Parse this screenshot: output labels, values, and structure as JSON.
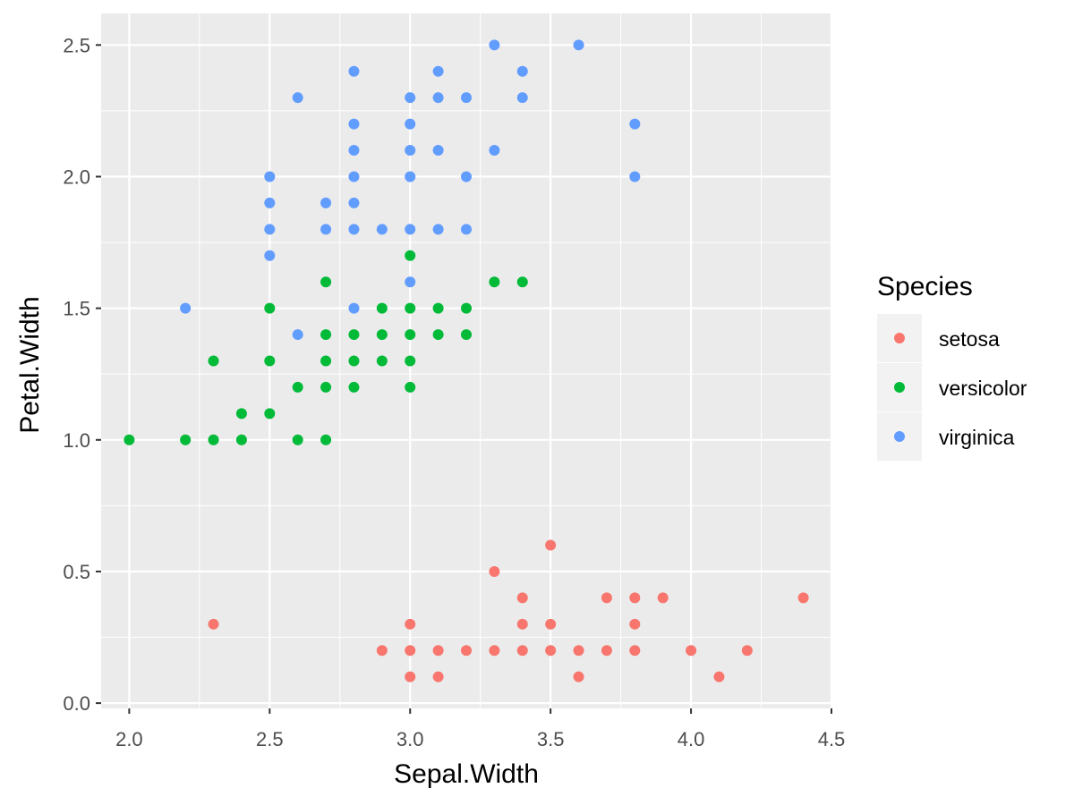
{
  "chart_data": {
    "type": "scatter",
    "xlabel": "Sepal.Width",
    "ylabel": "Petal.Width",
    "xlim": [
      1.9,
      4.5
    ],
    "ylim": [
      -0.02,
      2.62
    ],
    "x_ticks": [
      2.0,
      2.5,
      3.0,
      3.5,
      4.0,
      4.5
    ],
    "y_ticks": [
      0.0,
      0.5,
      1.0,
      1.5,
      2.0,
      2.5
    ],
    "grid": true,
    "legend": {
      "title": "Species",
      "placement": "right"
    },
    "series": [
      {
        "name": "setosa",
        "color": "#F8766D",
        "points": [
          [
            2.3,
            0.3
          ],
          [
            2.9,
            0.2
          ],
          [
            3.0,
            0.1
          ],
          [
            3.0,
            0.2
          ],
          [
            3.0,
            0.3
          ],
          [
            3.1,
            0.1
          ],
          [
            3.1,
            0.2
          ],
          [
            3.2,
            0.2
          ],
          [
            3.3,
            0.2
          ],
          [
            3.3,
            0.5
          ],
          [
            3.4,
            0.2
          ],
          [
            3.4,
            0.3
          ],
          [
            3.4,
            0.4
          ],
          [
            3.5,
            0.2
          ],
          [
            3.5,
            0.3
          ],
          [
            3.5,
            0.6
          ],
          [
            3.6,
            0.1
          ],
          [
            3.6,
            0.2
          ],
          [
            3.7,
            0.2
          ],
          [
            3.7,
            0.4
          ],
          [
            3.8,
            0.2
          ],
          [
            3.8,
            0.3
          ],
          [
            3.8,
            0.4
          ],
          [
            3.9,
            0.4
          ],
          [
            4.0,
            0.2
          ],
          [
            4.1,
            0.1
          ],
          [
            4.2,
            0.2
          ],
          [
            4.4,
            0.4
          ]
        ]
      },
      {
        "name": "versicolor",
        "color": "#00BA38",
        "points": [
          [
            2.0,
            1.0
          ],
          [
            2.2,
            1.0
          ],
          [
            2.3,
            1.0
          ],
          [
            2.3,
            1.3
          ],
          [
            2.4,
            1.0
          ],
          [
            2.4,
            1.1
          ],
          [
            2.5,
            1.1
          ],
          [
            2.5,
            1.3
          ],
          [
            2.5,
            1.5
          ],
          [
            2.6,
            1.0
          ],
          [
            2.6,
            1.2
          ],
          [
            2.7,
            1.0
          ],
          [
            2.7,
            1.2
          ],
          [
            2.7,
            1.3
          ],
          [
            2.7,
            1.4
          ],
          [
            2.7,
            1.6
          ],
          [
            2.8,
            1.2
          ],
          [
            2.8,
            1.3
          ],
          [
            2.8,
            1.4
          ],
          [
            2.9,
            1.3
          ],
          [
            2.9,
            1.4
          ],
          [
            2.9,
            1.5
          ],
          [
            3.0,
            1.2
          ],
          [
            3.0,
            1.3
          ],
          [
            3.0,
            1.4
          ],
          [
            3.0,
            1.5
          ],
          [
            3.0,
            1.7
          ],
          [
            3.1,
            1.4
          ],
          [
            3.1,
            1.5
          ],
          [
            3.2,
            1.4
          ],
          [
            3.2,
            1.5
          ],
          [
            3.3,
            1.6
          ],
          [
            3.4,
            1.6
          ]
        ]
      },
      {
        "name": "virginica",
        "color": "#619CFF",
        "points": [
          [
            2.2,
            1.5
          ],
          [
            2.5,
            1.7
          ],
          [
            2.5,
            1.8
          ],
          [
            2.5,
            1.9
          ],
          [
            2.5,
            2.0
          ],
          [
            2.6,
            1.4
          ],
          [
            2.6,
            2.3
          ],
          [
            2.7,
            1.8
          ],
          [
            2.7,
            1.9
          ],
          [
            2.8,
            1.5
          ],
          [
            2.8,
            1.8
          ],
          [
            2.8,
            1.9
          ],
          [
            2.8,
            2.0
          ],
          [
            2.8,
            2.1
          ],
          [
            2.8,
            2.2
          ],
          [
            2.8,
            2.4
          ],
          [
            2.9,
            1.8
          ],
          [
            3.0,
            1.6
          ],
          [
            3.0,
            1.8
          ],
          [
            3.0,
            2.0
          ],
          [
            3.0,
            2.1
          ],
          [
            3.0,
            2.2
          ],
          [
            3.0,
            2.3
          ],
          [
            3.1,
            1.8
          ],
          [
            3.1,
            2.1
          ],
          [
            3.1,
            2.3
          ],
          [
            3.1,
            2.4
          ],
          [
            3.2,
            1.8
          ],
          [
            3.2,
            2.0
          ],
          [
            3.2,
            2.3
          ],
          [
            3.3,
            2.1
          ],
          [
            3.3,
            2.5
          ],
          [
            3.4,
            2.3
          ],
          [
            3.4,
            2.4
          ],
          [
            3.6,
            2.5
          ],
          [
            3.8,
            2.0
          ],
          [
            3.8,
            2.2
          ]
        ]
      }
    ]
  },
  "colors": {
    "panel_background": "#EBEBEB",
    "grid_major": "#FFFFFF",
    "legend_key_background": "#F2F2F2"
  }
}
